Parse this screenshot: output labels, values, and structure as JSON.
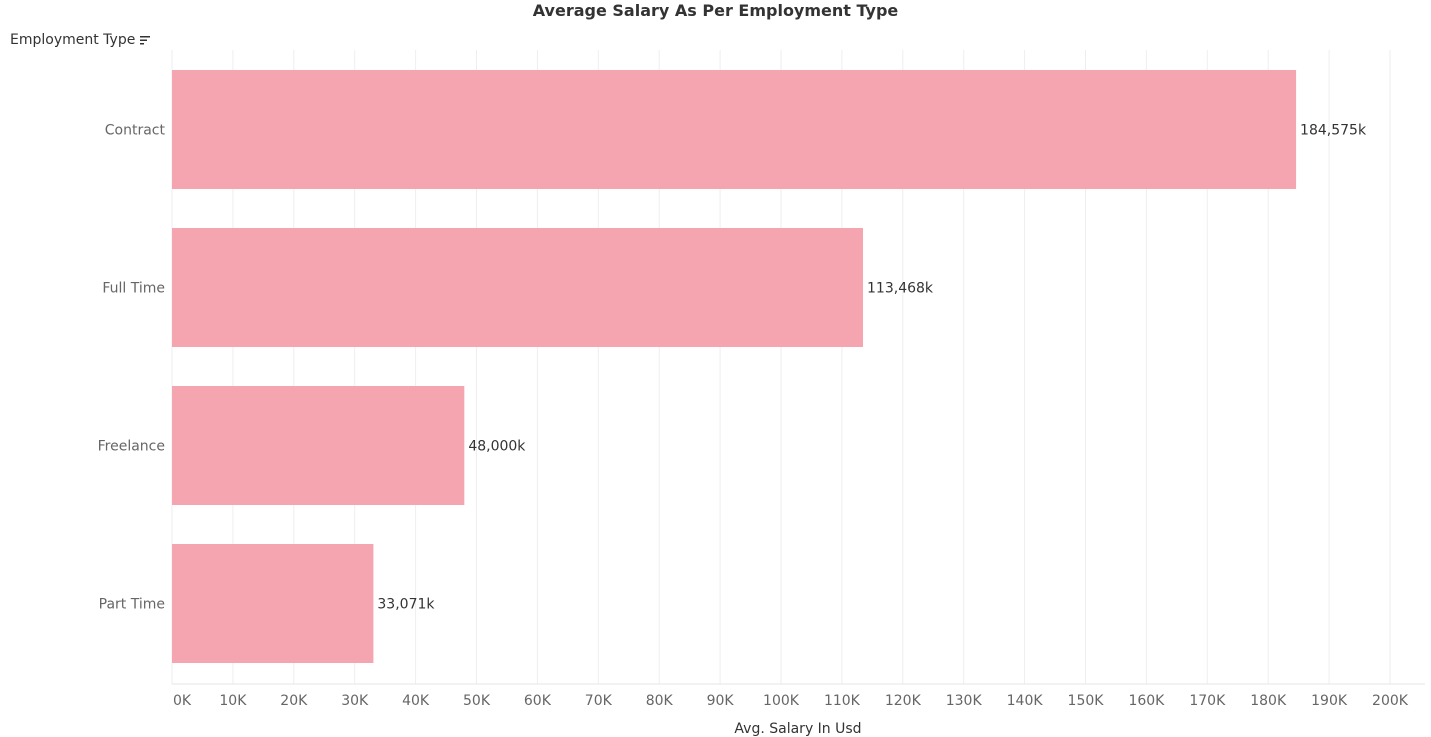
{
  "chart_data": {
    "type": "bar",
    "orientation": "horizontal",
    "title": "Average Salary As Per Employment Type",
    "row_header": "Employment Type",
    "xlabel": "Avg. Salary In Usd",
    "ylabel": "",
    "categories": [
      "Contract",
      "Full Time",
      "Freelance",
      "Part Time"
    ],
    "values": [
      184575,
      113468,
      48000,
      33071
    ],
    "value_labels": [
      "184,575k",
      "113,468k",
      "48,000k",
      "33,071k"
    ],
    "xlim": [
      0,
      200000
    ],
    "ticks": [
      0,
      10000,
      20000,
      30000,
      40000,
      50000,
      60000,
      70000,
      80000,
      90000,
      100000,
      110000,
      120000,
      130000,
      140000,
      150000,
      160000,
      170000,
      180000,
      190000,
      200000
    ],
    "tick_labels": [
      "0K",
      "10K",
      "20K",
      "30K",
      "40K",
      "50K",
      "60K",
      "70K",
      "80K",
      "90K",
      "100K",
      "110K",
      "120K",
      "130K",
      "140K",
      "150K",
      "160K",
      "170K",
      "180K",
      "190K",
      "200K"
    ],
    "grid": true,
    "bar_color": "#f4a5b0",
    "grid_color": "#eeeeee"
  },
  "icons": {
    "sort": "sort-descending-icon"
  }
}
